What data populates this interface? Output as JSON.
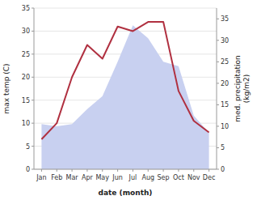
{
  "chart_data": {
    "type": "line",
    "categories": [
      "Jan",
      "Feb",
      "Mar",
      "Apr",
      "May",
      "Jun",
      "Jul",
      "Aug",
      "Sep",
      "Oct",
      "Nov",
      "Dec"
    ],
    "series": [
      {
        "type": "line",
        "color": "#b03040",
        "values": [
          6.5,
          10.0,
          20.0,
          27.0,
          24.0,
          31.0,
          30.0,
          32.0,
          32.0,
          17.0,
          10.5,
          8.0
        ]
      },
      {
        "type": "area",
        "color": "#c8d0f0",
        "axis": "y2",
        "values": [
          10.5,
          10.0,
          10.5,
          14.0,
          17.0,
          25.0,
          33.5,
          30.5,
          25.0,
          24.0,
          12.5,
          8.5
        ]
      }
    ],
    "xlabel": "date (month)",
    "ylabel": "max temp (C)",
    "y2label": "med. precipitation\n(kg/m2)",
    "ylim": [
      0,
      35
    ],
    "yticks": [
      0,
      5,
      10,
      15,
      20,
      25,
      30,
      35
    ],
    "y2lim": [
      0,
      37.5
    ],
    "y2ticks": [
      0,
      5,
      10,
      15,
      20,
      25,
      30,
      35
    ],
    "grid": true
  }
}
